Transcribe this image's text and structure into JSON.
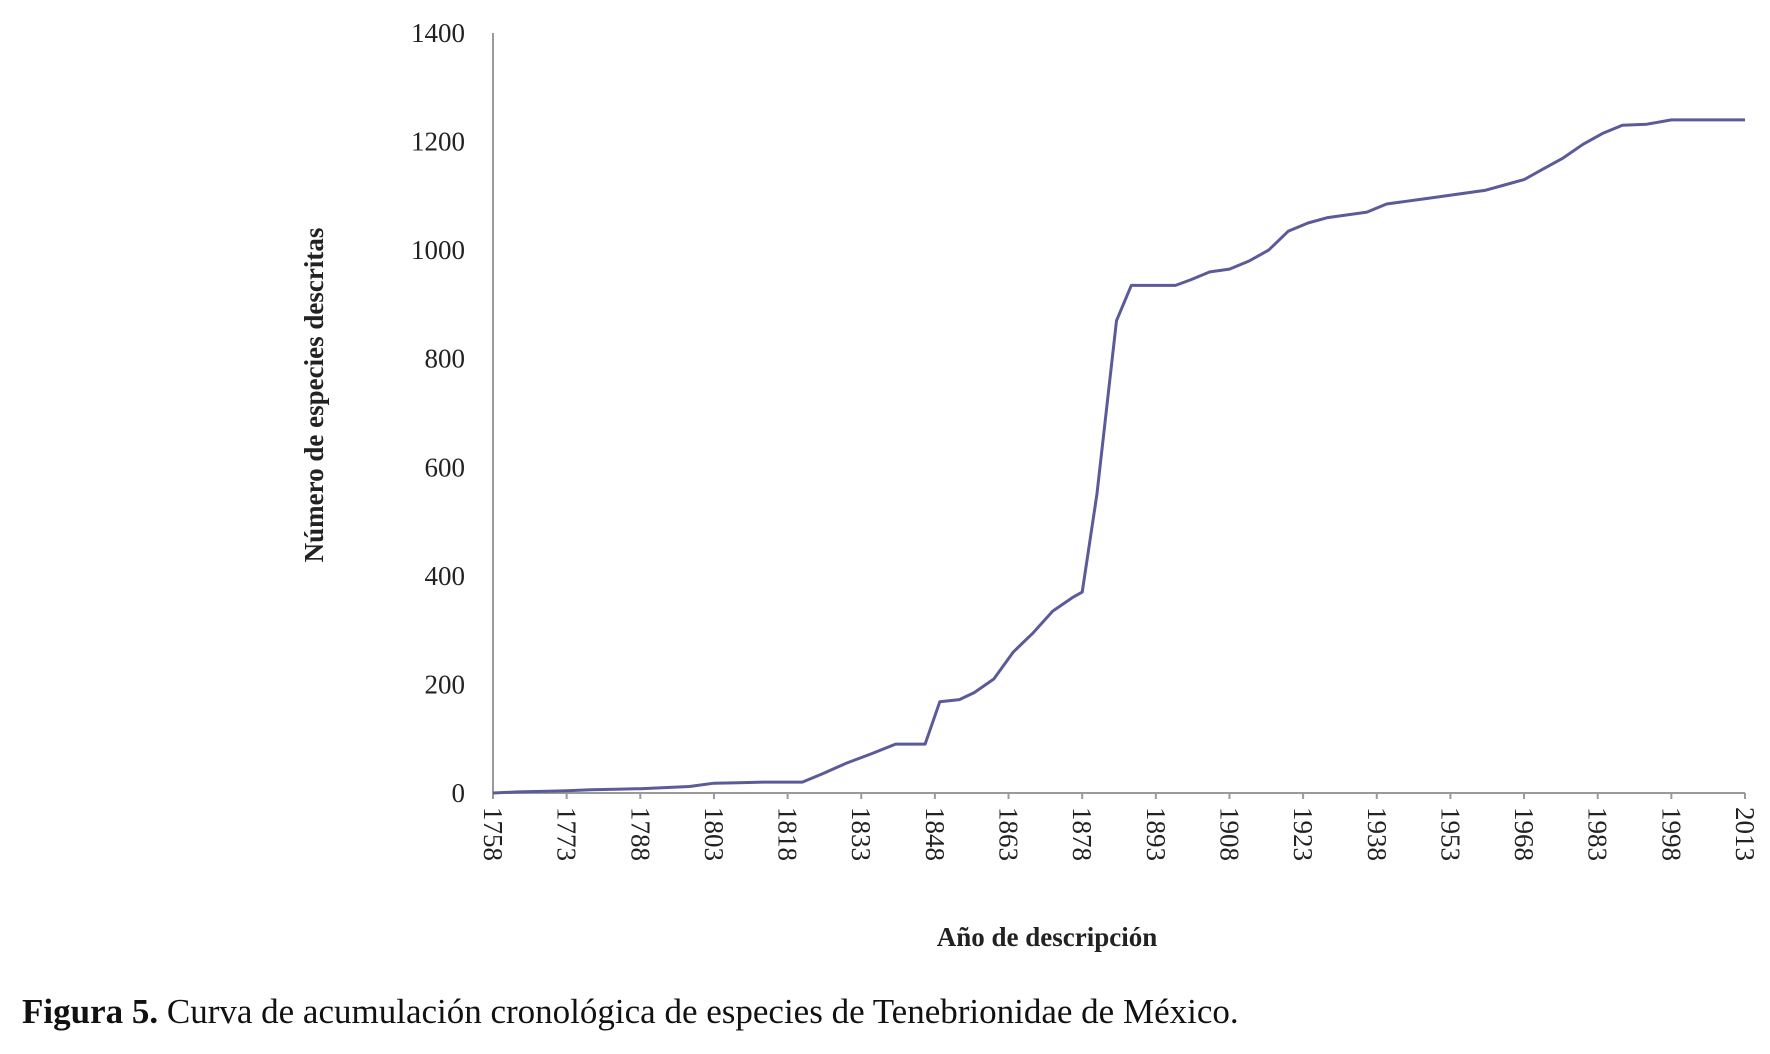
{
  "caption": {
    "label": "Figura 5.",
    "text": " Curva de acumulación cronológica de especies de Tenebrionidae de México."
  },
  "chart_data": {
    "type": "line",
    "title": "",
    "xlabel": "Año de descripción",
    "ylabel": "Número de especies descritas",
    "xlim": [
      1758,
      2013
    ],
    "ylim": [
      0,
      1400
    ],
    "x_ticks": [
      1758,
      1773,
      1788,
      1803,
      1818,
      1833,
      1848,
      1863,
      1878,
      1893,
      1908,
      1923,
      1938,
      1953,
      1968,
      1983,
      1998,
      2013
    ],
    "y_ticks": [
      0,
      200,
      400,
      600,
      800,
      1000,
      1200,
      1400
    ],
    "grid": false,
    "legend": "none",
    "line_color": "#5b5b9a",
    "series": [
      {
        "x": [
          1758,
          1763,
          1768,
          1773,
          1778,
          1783,
          1788,
          1793,
          1798,
          1803,
          1808,
          1813,
          1818,
          1821,
          1825,
          1830,
          1835,
          1840,
          1843,
          1846,
          1849,
          1853,
          1856,
          1860,
          1864,
          1868,
          1872,
          1876,
          1878,
          1881,
          1885,
          1888,
          1893,
          1897,
          1900,
          1904,
          1908,
          1912,
          1916,
          1920,
          1924,
          1928,
          1932,
          1936,
          1940,
          1944,
          1948,
          1952,
          1956,
          1960,
          1964,
          1968,
          1972,
          1976,
          1980,
          1984,
          1988,
          1993,
          1998,
          2003,
          2008,
          2013
        ],
        "y": [
          0,
          2,
          3,
          4,
          6,
          7,
          8,
          10,
          12,
          18,
          19,
          20,
          20,
          20,
          35,
          55,
          72,
          90,
          90,
          90,
          168,
          172,
          185,
          210,
          260,
          295,
          335,
          360,
          370,
          550,
          870,
          935,
          935,
          935,
          945,
          960,
          965,
          980,
          1000,
          1035,
          1050,
          1060,
          1065,
          1070,
          1085,
          1090,
          1095,
          1100,
          1105,
          1110,
          1120,
          1130,
          1150,
          1170,
          1195,
          1215,
          1230,
          1232,
          1240,
          1240,
          1240,
          1240
        ]
      }
    ]
  }
}
